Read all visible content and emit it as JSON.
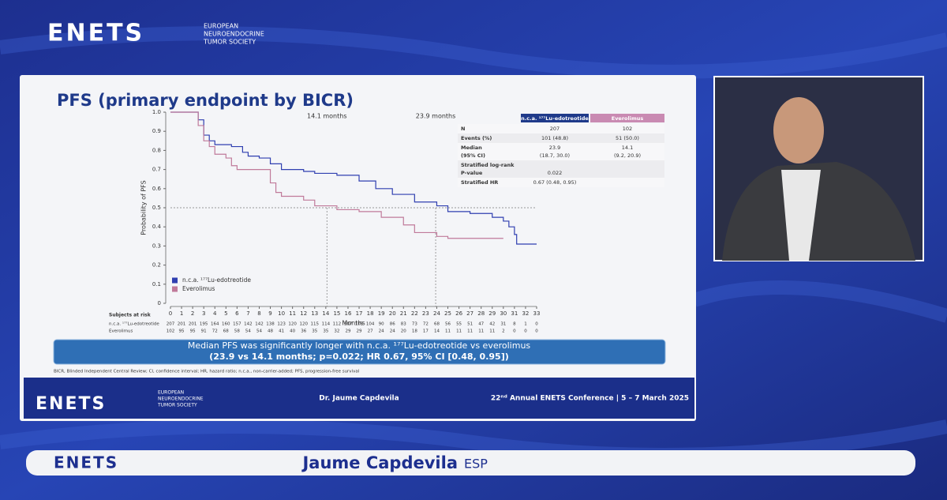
{
  "header": {
    "logo": "ENETS",
    "society": [
      "EUROPEAN",
      "NEUROENDOCRINE",
      "TUMOR SOCIETY"
    ]
  },
  "slide": {
    "title": "PFS (primary endpoint by BICR)",
    "stats_table": {
      "header": [
        "n.c.a. ¹⁷⁷Lu-edotreotide",
        "Everolimus"
      ],
      "rows": [
        {
          "label": [
            "N"
          ],
          "cells": [
            [
              "207"
            ],
            [
              "102"
            ]
          ]
        },
        {
          "label": [
            "Events (%)"
          ],
          "cells": [
            [
              "101 (48.8)"
            ],
            [
              "51 (50.0)"
            ]
          ]
        },
        {
          "label": [
            "Median",
            "(95% CI)"
          ],
          "cells": [
            [
              "23.9",
              "(18.7, 30.0)"
            ],
            [
              "14.1",
              "(9.2, 20.9)"
            ]
          ]
        },
        {
          "label": [
            "Stratified log-rank",
            "P-value"
          ],
          "cells": [
            [
              "0.022"
            ]
          ]
        },
        {
          "label": [
            "Stratified HR"
          ],
          "cells": [
            [
              "0.67 (0.48, 0.95)"
            ]
          ]
        }
      ]
    },
    "banner": [
      "Median PFS was significantly longer with n.c.a. ¹⁷⁷Lu-edotreotide vs everolimus",
      "(23.9 vs 14.1 months; p=0.022; HR 0.67, 95% CI [0.48, 0.95])"
    ],
    "footnote": "BICR, Blinded Independent Central Review; CI, confidence interval; HR, hazard ratio; n.c.a., non-carrier-added; PFS, progression-free survival"
  },
  "footer": {
    "logo": "ENETS",
    "society": [
      "EUROPEAN",
      "NEUROENDOCRINE",
      "TUMOR SOCIETY"
    ],
    "speaker": "Dr. Jaume Capdevila",
    "conference": "22ⁿᵈ Annual ENETS Conference | 5 – 7 March 2025"
  },
  "lower_third": {
    "logo": "ENETS",
    "name": "Jaume Capdevila",
    "country": "ESP"
  },
  "chart_data": {
    "type": "line",
    "x_label": "Months",
    "y_label": "Probability of PFS",
    "xlim": [
      0,
      33
    ],
    "xticks": [
      0,
      1,
      2,
      3,
      4,
      5,
      6,
      7,
      8,
      9,
      10,
      11,
      12,
      13,
      14,
      15,
      16,
      17,
      18,
      19,
      20,
      21,
      22,
      23,
      24,
      25,
      26,
      27,
      28,
      29,
      30,
      31,
      32,
      33
    ],
    "ylim": [
      0,
      1
    ],
    "yticks": [
      0,
      0.1,
      0.2,
      0.3,
      0.4,
      0.5,
      0.6,
      0.7,
      0.8,
      {
        "value": 0.9,
        "label": "0.9"
      },
      {
        "value": 1,
        "label": "1.0"
      }
    ],
    "reference_y": 0.5,
    "annotations": [
      {
        "text": "14.1 months",
        "x": 14.1
      },
      {
        "text": "23.9 months",
        "x": 23.9
      }
    ],
    "series": [
      {
        "name": "n.c.a. ¹⁷⁷Lu-edotreotide",
        "color": "#2f3fb0",
        "x": [
          0,
          2,
          2.5,
          3,
          3.5,
          4,
          5.5,
          6.5,
          7,
          8,
          9,
          10,
          12,
          13,
          15,
          17,
          18.5,
          20,
          22,
          24,
          25,
          27,
          29,
          30,
          30.5,
          31,
          31.2,
          33
        ],
        "values": [
          1,
          1,
          0.96,
          0.88,
          0.85,
          0.83,
          0.82,
          0.79,
          0.77,
          0.76,
          0.73,
          0.7,
          0.69,
          0.68,
          0.67,
          0.64,
          0.6,
          0.57,
          0.53,
          0.51,
          0.48,
          0.47,
          0.45,
          0.43,
          0.4,
          0.36,
          0.31,
          0.31
        ]
      },
      {
        "name": "Everolimus",
        "color": "#c07a9a",
        "x": [
          0,
          2,
          2.5,
          3,
          3.5,
          4,
          5,
          5.5,
          6,
          8,
          9,
          9.5,
          10,
          12,
          13,
          15,
          17,
          19,
          21,
          22,
          24,
          25,
          30
        ],
        "values": [
          1,
          1,
          0.93,
          0.85,
          0.82,
          0.78,
          0.76,
          0.72,
          0.7,
          0.7,
          0.63,
          0.58,
          0.56,
          0.54,
          0.51,
          0.49,
          0.48,
          0.45,
          0.41,
          0.37,
          0.35,
          0.34,
          0.34
        ]
      }
    ],
    "risk_table": {
      "title": "Subjects at risk",
      "rows": [
        {
          "name": "n.c.a. ¹⁷⁷Lu-edotreotide",
          "values": [
            207,
            201,
            201,
            195,
            164,
            160,
            157,
            142,
            142,
            138,
            123,
            120,
            120,
            115,
            114,
            112,
            107,
            105,
            104,
            90,
            86,
            83,
            73,
            72,
            68,
            56,
            55,
            51,
            47,
            42,
            31,
            8,
            1,
            0
          ]
        },
        {
          "name": "Everolimus",
          "values": [
            102,
            95,
            95,
            91,
            72,
            68,
            58,
            54,
            54,
            48,
            41,
            40,
            36,
            35,
            35,
            32,
            29,
            29,
            27,
            24,
            24,
            20,
            18,
            17,
            14,
            11,
            11,
            11,
            11,
            11,
            2,
            0,
            0,
            0
          ]
        }
      ]
    }
  }
}
